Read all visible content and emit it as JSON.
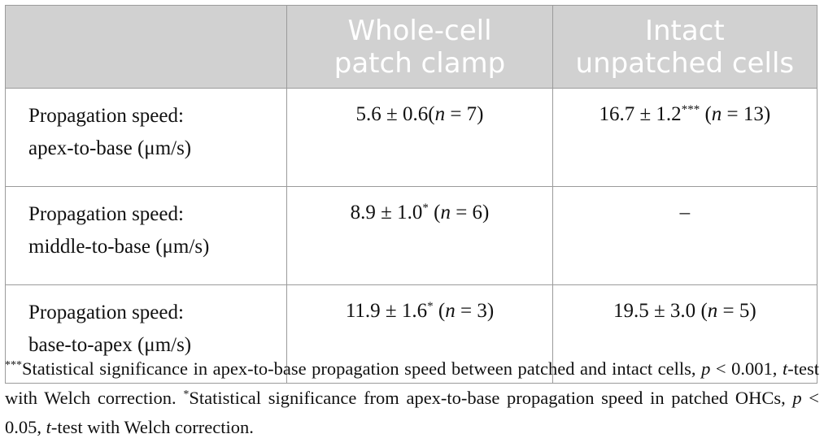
{
  "table": {
    "headers": [
      "",
      "Whole-cell patch clamp",
      "Intact unpatched cells"
    ],
    "header_lines": {
      "col2": [
        "Whole-cell",
        "patch clamp"
      ],
      "col3": [
        "Intact",
        "unpatched cells"
      ]
    },
    "rows": [
      {
        "label_line1": "Propagation speed:",
        "label_line2": "apex-to-base (μm/s)",
        "patch": {
          "value": "5.6 ± 0.6",
          "sig": "",
          "n_prefix": "(",
          "n_var": "n",
          "n_rest": " = 7)"
        },
        "intact": {
          "value": "16.7 ± 1.2",
          "sig": "***",
          "n_prefix": " (",
          "n_var": "n",
          "n_rest": " = 13)"
        }
      },
      {
        "label_line1": "Propagation speed:",
        "label_line2": "middle-to-base (μm/s)",
        "patch": {
          "value": "8.9 ± 1.0",
          "sig": "*",
          "n_prefix": " (",
          "n_var": "n",
          "n_rest": " = 6)"
        },
        "intact": {
          "text": "–"
        }
      },
      {
        "label_line1": "Propagation speed:",
        "label_line2": "base-to-apex (μm/s)",
        "patch": {
          "value": "11.9 ± 1.6",
          "sig": "*",
          "n_prefix": " (",
          "n_var": "n",
          "n_rest": " = 3)"
        },
        "intact": {
          "value": "19.5 ± 3.0",
          "sig": "",
          "n_prefix": " (",
          "n_var": "n",
          "n_rest": " = 5)"
        }
      }
    ]
  },
  "footnote": {
    "mark1": "***",
    "text1": "Statistical significance in apex-to-base propagation speed between patched and intact cells, ",
    "p1_var": "p",
    "p1_rest": " < 0.001, ",
    "t1_var": "t",
    "t1_rest": "-test with Welch correction. ",
    "mark2": "*",
    "text2": "Statistical significance from apex-to-base propagation speed in patched OHCs, ",
    "p2_var": "p",
    "p2_rest": " < 0.05, ",
    "t2_var": "t",
    "t2_rest": "-test with Welch correction."
  }
}
